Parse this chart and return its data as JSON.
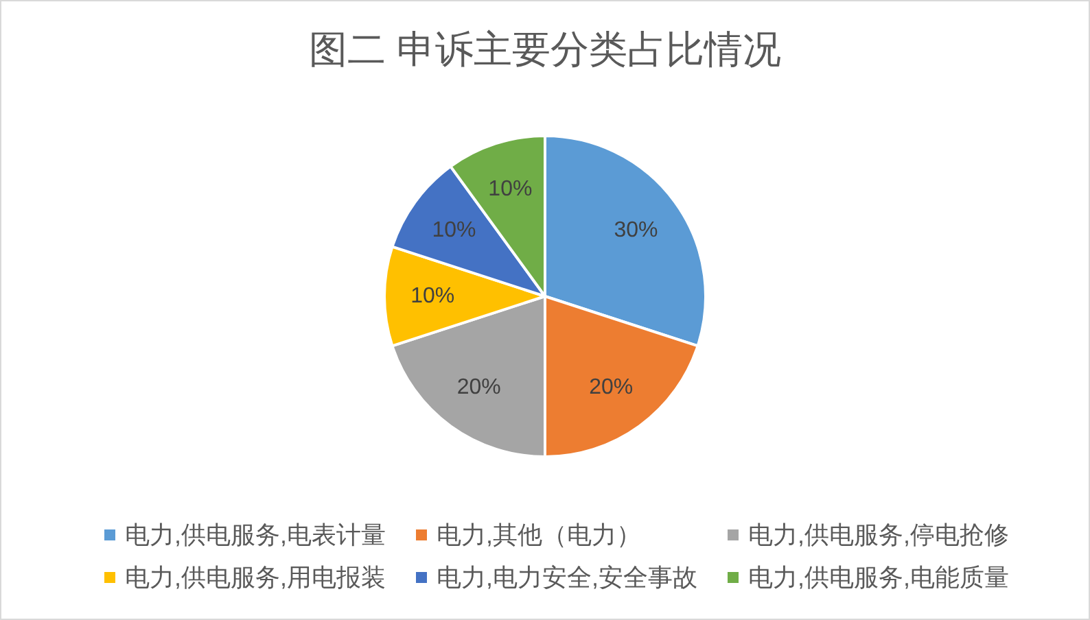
{
  "chart_data": {
    "type": "pie",
    "title": "图二 申诉主要分类占比情况",
    "categories": [
      "电力,供电服务,电表计量",
      "电力,其他（电力）",
      "电力,供电服务,停电抢修",
      "电力,供电服务,用电报装",
      "电力,电力安全,安全事故",
      "电力,供电服务,电能质量"
    ],
    "values": [
      30,
      20,
      20,
      10,
      10,
      10
    ],
    "colors": [
      "#5b9bd5",
      "#ed7d31",
      "#a5a5a5",
      "#ffc000",
      "#4472c4",
      "#70ad47"
    ],
    "value_labels": [
      "30%",
      "20%",
      "20%",
      "10%",
      "10%",
      "10%"
    ],
    "legend": "bottom"
  }
}
